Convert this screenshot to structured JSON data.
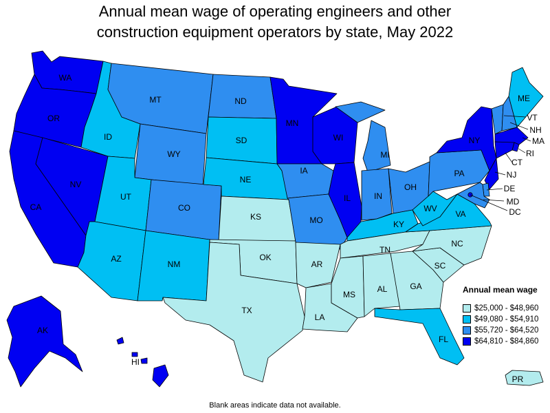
{
  "title": {
    "line1": "Annual mean wage of operating engineers and other",
    "line2": "construction equipment operators by state, May 2022"
  },
  "legend": {
    "title": "Annual mean wage",
    "ranges": [
      {
        "label": "$25,000 - $48,960",
        "color": "#b3ecee"
      },
      {
        "label": "$49,080 - $54,910",
        "color": "#00bff3"
      },
      {
        "label": "$55,720 - $64,520",
        "color": "#2f8ef0"
      },
      {
        "label": "$64,810 - $84,860",
        "color": "#0000f2"
      }
    ]
  },
  "states": [
    {
      "abbr": "WA",
      "bin": 3
    },
    {
      "abbr": "OR",
      "bin": 3
    },
    {
      "abbr": "CA",
      "bin": 3
    },
    {
      "abbr": "NV",
      "bin": 3
    },
    {
      "abbr": "ID",
      "bin": 1
    },
    {
      "abbr": "MT",
      "bin": 2
    },
    {
      "abbr": "WY",
      "bin": 2
    },
    {
      "abbr": "UT",
      "bin": 1
    },
    {
      "abbr": "AZ",
      "bin": 1
    },
    {
      "abbr": "CO",
      "bin": 2
    },
    {
      "abbr": "NM",
      "bin": 1
    },
    {
      "abbr": "ND",
      "bin": 2
    },
    {
      "abbr": "SD",
      "bin": 1
    },
    {
      "abbr": "NE",
      "bin": 1
    },
    {
      "abbr": "KS",
      "bin": 0
    },
    {
      "abbr": "OK",
      "bin": 0
    },
    {
      "abbr": "TX",
      "bin": 0
    },
    {
      "abbr": "MN",
      "bin": 3
    },
    {
      "abbr": "IA",
      "bin": 2
    },
    {
      "abbr": "MO",
      "bin": 2
    },
    {
      "abbr": "AR",
      "bin": 0
    },
    {
      "abbr": "LA",
      "bin": 0
    },
    {
      "abbr": "WI",
      "bin": 3
    },
    {
      "abbr": "IL",
      "bin": 3
    },
    {
      "abbr": "MI",
      "bin": 2
    },
    {
      "abbr": "IN",
      "bin": 2
    },
    {
      "abbr": "OH",
      "bin": 2
    },
    {
      "abbr": "KY",
      "bin": 1
    },
    {
      "abbr": "TN",
      "bin": 0
    },
    {
      "abbr": "MS",
      "bin": 0
    },
    {
      "abbr": "AL",
      "bin": 0
    },
    {
      "abbr": "GA",
      "bin": 0
    },
    {
      "abbr": "FL",
      "bin": 1
    },
    {
      "abbr": "SC",
      "bin": 0
    },
    {
      "abbr": "NC",
      "bin": 0
    },
    {
      "abbr": "VA",
      "bin": 1
    },
    {
      "abbr": "WV",
      "bin": 1
    },
    {
      "abbr": "PA",
      "bin": 2
    },
    {
      "abbr": "NY",
      "bin": 3
    },
    {
      "abbr": "ME",
      "bin": 1
    },
    {
      "abbr": "VT",
      "bin": 2
    },
    {
      "abbr": "NH",
      "bin": 2
    },
    {
      "abbr": "MA",
      "bin": 3
    },
    {
      "abbr": "RI",
      "bin": 3
    },
    {
      "abbr": "CT",
      "bin": 3
    },
    {
      "abbr": "NJ",
      "bin": 3
    },
    {
      "abbr": "DE",
      "bin": 2
    },
    {
      "abbr": "MD",
      "bin": 2
    },
    {
      "abbr": "DC",
      "bin": 3
    },
    {
      "abbr": "AK",
      "bin": 3
    },
    {
      "abbr": "HI",
      "bin": 3
    },
    {
      "abbr": "PR",
      "bin": 0
    }
  ],
  "footnote": "Blank areas indicate data not available."
}
